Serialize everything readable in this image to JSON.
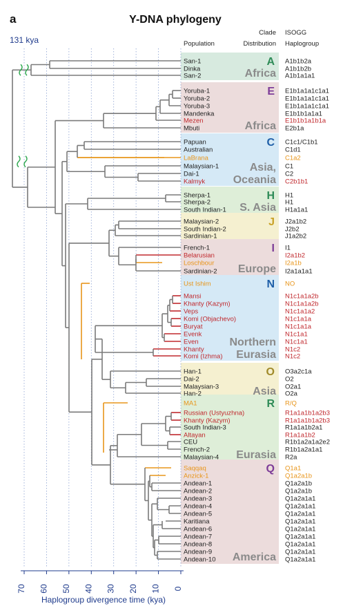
{
  "panel_label": "a",
  "title": "Y-DNA phylogeny",
  "root_label": "131 kya",
  "headers": {
    "population": "Population",
    "clade_line1": "Clade",
    "clade_line2": "Distribution",
    "isogg_line1": "ISOGG",
    "isogg_line2": "Haplogroup"
  },
  "axis": {
    "label": "Haplogroup divergence time (kya)",
    "ticks": [
      "70",
      "60",
      "50",
      "40",
      "30",
      "20",
      "10",
      "0"
    ]
  },
  "colors": {
    "ancient": "#e8951a",
    "admixed": "#c0282d",
    "modern": "#222222",
    "tree": "#7a7a7a",
    "axis": "#1f3b8c",
    "break_marks": "#2fa84f"
  },
  "clades": [
    {
      "letter": "A",
      "region": "Africa",
      "letter_color": "#2e8b57",
      "region_color": "#8a8a8a",
      "panel_color": "#d7eadf"
    },
    {
      "letter": "E",
      "region": "Africa",
      "letter_color": "#7d3c98",
      "region_color": "#8a8a8a",
      "panel_color": "#ecdcdc"
    },
    {
      "letter": "C",
      "region": "Asia,",
      "region2": "Oceania",
      "letter_color": "#1f5fa8",
      "region_color": "#8a8a8a",
      "panel_color": "#d5e9f6"
    },
    {
      "letter": "H",
      "region": "S. Asia",
      "letter_color": "#2e8b57",
      "region_color": "#8a8a8a",
      "panel_color": "#deeed8"
    },
    {
      "letter": "J",
      "region": "",
      "letter_color": "#c9a227",
      "region_color": "#8a8a8a",
      "panel_color": "#f5f0d0"
    },
    {
      "letter": "I",
      "region": "Europe",
      "letter_color": "#7d3c98",
      "region_color": "#8a8a8a",
      "panel_color": "#ecdcdc"
    },
    {
      "letter": "N",
      "region": "Northern",
      "region2": "Eurasia",
      "letter_color": "#1f5fa8",
      "region_color": "#8a8a8a",
      "panel_color": "#d5e9f6"
    },
    {
      "letter": "O",
      "region": "Asia",
      "letter_color": "#a08a2a",
      "region_color": "#8a8a8a",
      "panel_color": "#f5f0d0"
    },
    {
      "letter": "R",
      "region": "Eurasia",
      "letter_color": "#2e8b57",
      "region_color": "#8a8a8a",
      "panel_color": "#deeed8"
    },
    {
      "letter": "Q",
      "region": "America",
      "letter_color": "#7d3c98",
      "region_color": "#8a8a8a",
      "panel_color": "#ecdcdc"
    }
  ],
  "rows": [
    {
      "pop": "San-1",
      "hap": "A1b1b2a",
      "type": "modern"
    },
    {
      "pop": "Dinka",
      "hap": "A1b1b2b",
      "type": "modern"
    },
    {
      "pop": "San-2",
      "hap": "A1b1a1a1",
      "type": "modern"
    },
    {
      "pop": "Yoruba-1",
      "hap": "E1b1a1a1c1a1",
      "type": "modern"
    },
    {
      "pop": "Yoruba-2",
      "hap": "E1b1a1a1c1a1",
      "type": "modern"
    },
    {
      "pop": "Yoruba-3",
      "hap": "E1b1a1a1c1a1",
      "type": "modern"
    },
    {
      "pop": "Mandenka",
      "hap": "E1b1b1a1a1",
      "type": "modern"
    },
    {
      "pop": "Mezen",
      "hap": "E1b1b1a1b1a",
      "type": "admixed"
    },
    {
      "pop": "Mbuti",
      "hap": "E2b1a",
      "type": "modern"
    },
    {
      "pop": "Papuan",
      "hap": "C1c1/C1b1",
      "type": "modern"
    },
    {
      "pop": "Australian",
      "hap": "C1d1",
      "type": "modern"
    },
    {
      "pop": "LaBrana",
      "hap": "C1a2",
      "type": "ancient"
    },
    {
      "pop": "Malaysian-1",
      "hap": "C1",
      "type": "modern"
    },
    {
      "pop": "Dai-1",
      "hap": "C2",
      "type": "modern"
    },
    {
      "pop": "Kalmyk",
      "hap": "C2b1b1",
      "type": "admixed"
    },
    {
      "pop": "Sherpa-1",
      "hap": "H1",
      "type": "modern"
    },
    {
      "pop": "Sherpa-2",
      "hap": "H1",
      "type": "modern"
    },
    {
      "pop": "South Indian-1",
      "hap": "H1a1a1",
      "type": "modern"
    },
    {
      "pop": "Malaysian-2",
      "hap": "J2a1b2",
      "type": "modern"
    },
    {
      "pop": "South Indian-2",
      "hap": "J2b2",
      "type": "modern"
    },
    {
      "pop": "Sardinian-1",
      "hap": "J1a2b2",
      "type": "modern"
    },
    {
      "pop": "French-1",
      "hap": "I1",
      "type": "modern"
    },
    {
      "pop": "Belarusian",
      "hap": "I2a1b2",
      "type": "admixed"
    },
    {
      "pop": "Loschbour",
      "hap": "I2a1b",
      "type": "ancient"
    },
    {
      "pop": "Sardinian-2",
      "hap": "I2a1a1a1",
      "type": "modern"
    },
    {
      "pop": "Ust Ishim",
      "hap": "NO",
      "type": "ancient"
    },
    {
      "pop": "Mansi",
      "hap": "N1c1a1a2b",
      "type": "admixed"
    },
    {
      "pop": "Khanty (Kazym)",
      "hap": "N1c1a1a2b",
      "type": "admixed"
    },
    {
      "pop": "Veps",
      "hap": "N1c1a1a2",
      "type": "admixed"
    },
    {
      "pop": "Komi (Objachevo)",
      "hap": "N1c1a1a",
      "type": "admixed"
    },
    {
      "pop": "Buryat",
      "hap": "N1c1a1a",
      "type": "admixed"
    },
    {
      "pop": "Evenk",
      "hap": "N1c1a1",
      "type": "admixed"
    },
    {
      "pop": "Even",
      "hap": "N1c1a1",
      "type": "admixed"
    },
    {
      "pop": "Khanty",
      "hap": "N1c2",
      "type": "admixed"
    },
    {
      "pop": "Komi (Izhma)",
      "hap": "N1c2",
      "type": "admixed"
    },
    {
      "pop": "Han-1",
      "hap": "O3a2c1a",
      "type": "modern"
    },
    {
      "pop": "Dai-2",
      "hap": "O2",
      "type": "modern"
    },
    {
      "pop": "Malaysian-3",
      "hap": "O2a1",
      "type": "modern"
    },
    {
      "pop": "Han-2",
      "hap": "O2a",
      "type": "modern"
    },
    {
      "pop": "MA1",
      "hap": "R/Q",
      "type": "ancient"
    },
    {
      "pop": "Russian (Ustyuzhna)",
      "hap": "R1a1a1b1a2b3",
      "type": "admixed"
    },
    {
      "pop": "Khanty (Kazym)",
      "hap": "R1a1a1b1a2b3",
      "type": "admixed"
    },
    {
      "pop": "South Indian-3",
      "hap": "R1a1a1b2a1",
      "type": "modern"
    },
    {
      "pop": "Altayan",
      "hap": "R1a1a1b2",
      "type": "admixed"
    },
    {
      "pop": "CEU",
      "hap": "R1b1a2a1a2e2",
      "type": "modern"
    },
    {
      "pop": "French-2",
      "hap": "R1b1a2a1a1",
      "type": "modern"
    },
    {
      "pop": "Malaysian-4",
      "hap": "R2a",
      "type": "modern"
    },
    {
      "pop": "Saqqaq",
      "hap": "Q1a1",
      "type": "ancient"
    },
    {
      "pop": "Anzick-1",
      "hap": "Q1a2a1b",
      "type": "ancient"
    },
    {
      "pop": "Andean-1",
      "hap": "Q1a2a1b",
      "type": "modern"
    },
    {
      "pop": "Andean-2",
      "hap": "Q1a2a1b",
      "type": "modern"
    },
    {
      "pop": "Andean-3",
      "hap": "Q1a2a1a1",
      "type": "modern"
    },
    {
      "pop": "Andean-4",
      "hap": "Q1a2a1a1",
      "type": "modern"
    },
    {
      "pop": "Andean-5",
      "hap": "Q1a2a1a1",
      "type": "modern"
    },
    {
      "pop": "Karitiana",
      "hap": "Q1a2a1a1",
      "type": "modern"
    },
    {
      "pop": "Andean-6",
      "hap": "Q1a2a1a1",
      "type": "modern"
    },
    {
      "pop": "Andean-7",
      "hap": "Q1a2a1a1",
      "type": "modern"
    },
    {
      "pop": "Andean-8",
      "hap": "Q1a2a1a1",
      "type": "modern"
    },
    {
      "pop": "Andean-9",
      "hap": "Q1a2a1a1",
      "type": "modern"
    },
    {
      "pop": "Andean-10",
      "hap": "Q1a2a1a1",
      "type": "modern"
    }
  ]
}
